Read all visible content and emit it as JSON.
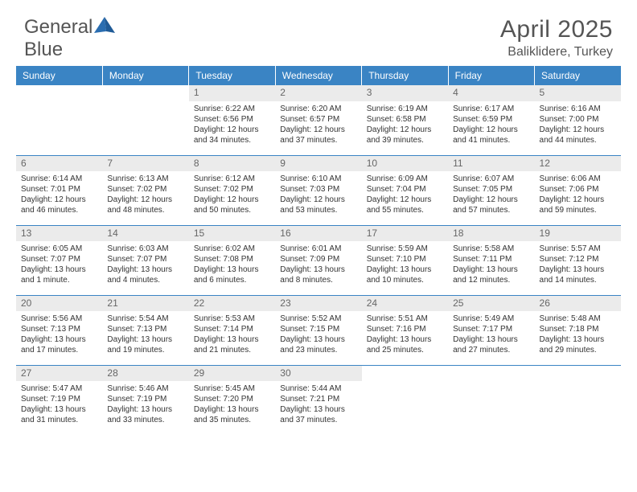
{
  "logo": {
    "text1": "General",
    "text2": "Blue"
  },
  "header": {
    "title": "April 2025",
    "location": "Baliklidere, Turkey"
  },
  "colors": {
    "header_bar": "#3a84c4",
    "day_bg": "#ebebeb",
    "text": "#555555",
    "logo_blue": "#2a6db0"
  },
  "daynames": [
    "Sunday",
    "Monday",
    "Tuesday",
    "Wednesday",
    "Thursday",
    "Friday",
    "Saturday"
  ],
  "weeks": [
    [
      {
        "n": "",
        "lines": []
      },
      {
        "n": "",
        "lines": []
      },
      {
        "n": "1",
        "lines": [
          "Sunrise: 6:22 AM",
          "Sunset: 6:56 PM",
          "Daylight: 12 hours",
          "and 34 minutes."
        ]
      },
      {
        "n": "2",
        "lines": [
          "Sunrise: 6:20 AM",
          "Sunset: 6:57 PM",
          "Daylight: 12 hours",
          "and 37 minutes."
        ]
      },
      {
        "n": "3",
        "lines": [
          "Sunrise: 6:19 AM",
          "Sunset: 6:58 PM",
          "Daylight: 12 hours",
          "and 39 minutes."
        ]
      },
      {
        "n": "4",
        "lines": [
          "Sunrise: 6:17 AM",
          "Sunset: 6:59 PM",
          "Daylight: 12 hours",
          "and 41 minutes."
        ]
      },
      {
        "n": "5",
        "lines": [
          "Sunrise: 6:16 AM",
          "Sunset: 7:00 PM",
          "Daylight: 12 hours",
          "and 44 minutes."
        ]
      }
    ],
    [
      {
        "n": "6",
        "lines": [
          "Sunrise: 6:14 AM",
          "Sunset: 7:01 PM",
          "Daylight: 12 hours",
          "and 46 minutes."
        ]
      },
      {
        "n": "7",
        "lines": [
          "Sunrise: 6:13 AM",
          "Sunset: 7:02 PM",
          "Daylight: 12 hours",
          "and 48 minutes."
        ]
      },
      {
        "n": "8",
        "lines": [
          "Sunrise: 6:12 AM",
          "Sunset: 7:02 PM",
          "Daylight: 12 hours",
          "and 50 minutes."
        ]
      },
      {
        "n": "9",
        "lines": [
          "Sunrise: 6:10 AM",
          "Sunset: 7:03 PM",
          "Daylight: 12 hours",
          "and 53 minutes."
        ]
      },
      {
        "n": "10",
        "lines": [
          "Sunrise: 6:09 AM",
          "Sunset: 7:04 PM",
          "Daylight: 12 hours",
          "and 55 minutes."
        ]
      },
      {
        "n": "11",
        "lines": [
          "Sunrise: 6:07 AM",
          "Sunset: 7:05 PM",
          "Daylight: 12 hours",
          "and 57 minutes."
        ]
      },
      {
        "n": "12",
        "lines": [
          "Sunrise: 6:06 AM",
          "Sunset: 7:06 PM",
          "Daylight: 12 hours",
          "and 59 minutes."
        ]
      }
    ],
    [
      {
        "n": "13",
        "lines": [
          "Sunrise: 6:05 AM",
          "Sunset: 7:07 PM",
          "Daylight: 13 hours",
          "and 1 minute."
        ]
      },
      {
        "n": "14",
        "lines": [
          "Sunrise: 6:03 AM",
          "Sunset: 7:07 PM",
          "Daylight: 13 hours",
          "and 4 minutes."
        ]
      },
      {
        "n": "15",
        "lines": [
          "Sunrise: 6:02 AM",
          "Sunset: 7:08 PM",
          "Daylight: 13 hours",
          "and 6 minutes."
        ]
      },
      {
        "n": "16",
        "lines": [
          "Sunrise: 6:01 AM",
          "Sunset: 7:09 PM",
          "Daylight: 13 hours",
          "and 8 minutes."
        ]
      },
      {
        "n": "17",
        "lines": [
          "Sunrise: 5:59 AM",
          "Sunset: 7:10 PM",
          "Daylight: 13 hours",
          "and 10 minutes."
        ]
      },
      {
        "n": "18",
        "lines": [
          "Sunrise: 5:58 AM",
          "Sunset: 7:11 PM",
          "Daylight: 13 hours",
          "and 12 minutes."
        ]
      },
      {
        "n": "19",
        "lines": [
          "Sunrise: 5:57 AM",
          "Sunset: 7:12 PM",
          "Daylight: 13 hours",
          "and 14 minutes."
        ]
      }
    ],
    [
      {
        "n": "20",
        "lines": [
          "Sunrise: 5:56 AM",
          "Sunset: 7:13 PM",
          "Daylight: 13 hours",
          "and 17 minutes."
        ]
      },
      {
        "n": "21",
        "lines": [
          "Sunrise: 5:54 AM",
          "Sunset: 7:13 PM",
          "Daylight: 13 hours",
          "and 19 minutes."
        ]
      },
      {
        "n": "22",
        "lines": [
          "Sunrise: 5:53 AM",
          "Sunset: 7:14 PM",
          "Daylight: 13 hours",
          "and 21 minutes."
        ]
      },
      {
        "n": "23",
        "lines": [
          "Sunrise: 5:52 AM",
          "Sunset: 7:15 PM",
          "Daylight: 13 hours",
          "and 23 minutes."
        ]
      },
      {
        "n": "24",
        "lines": [
          "Sunrise: 5:51 AM",
          "Sunset: 7:16 PM",
          "Daylight: 13 hours",
          "and 25 minutes."
        ]
      },
      {
        "n": "25",
        "lines": [
          "Sunrise: 5:49 AM",
          "Sunset: 7:17 PM",
          "Daylight: 13 hours",
          "and 27 minutes."
        ]
      },
      {
        "n": "26",
        "lines": [
          "Sunrise: 5:48 AM",
          "Sunset: 7:18 PM",
          "Daylight: 13 hours",
          "and 29 minutes."
        ]
      }
    ],
    [
      {
        "n": "27",
        "lines": [
          "Sunrise: 5:47 AM",
          "Sunset: 7:19 PM",
          "Daylight: 13 hours",
          "and 31 minutes."
        ]
      },
      {
        "n": "28",
        "lines": [
          "Sunrise: 5:46 AM",
          "Sunset: 7:19 PM",
          "Daylight: 13 hours",
          "and 33 minutes."
        ]
      },
      {
        "n": "29",
        "lines": [
          "Sunrise: 5:45 AM",
          "Sunset: 7:20 PM",
          "Daylight: 13 hours",
          "and 35 minutes."
        ]
      },
      {
        "n": "30",
        "lines": [
          "Sunrise: 5:44 AM",
          "Sunset: 7:21 PM",
          "Daylight: 13 hours",
          "and 37 minutes."
        ]
      },
      {
        "n": "",
        "lines": []
      },
      {
        "n": "",
        "lines": []
      },
      {
        "n": "",
        "lines": []
      }
    ]
  ]
}
